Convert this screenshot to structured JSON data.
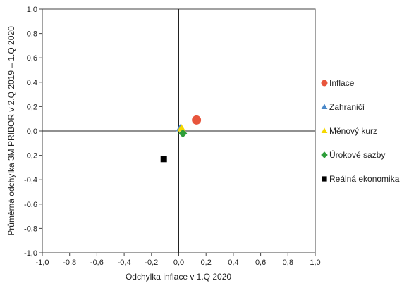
{
  "chart_data": {
    "type": "scatter",
    "xlabel": "Odchylka inflace v 1.Q 2020",
    "ylabel": "Průměrná odchylka 3M PRIBOR v 2.Q 2019 – 1.Q 2020",
    "xlim": [
      -1.0,
      1.0
    ],
    "ylim": [
      -1.0,
      1.0
    ],
    "x_ticks": [
      "-1,0",
      "-0,8",
      "-0,6",
      "-0,4",
      "-0,2",
      "0,0",
      "0,2",
      "0,4",
      "0,6",
      "0,8",
      "1,0"
    ],
    "y_ticks": [
      "1,0",
      "0,8",
      "0,6",
      "0,4",
      "0,2",
      "0,0",
      "-0,2",
      "-0,4",
      "-0,6",
      "-0,8",
      "-1,0"
    ],
    "grid": false,
    "legend_position": "right",
    "series": [
      {
        "name": "Inflace",
        "x": 0.13,
        "y": 0.09,
        "marker": "circle",
        "color": "#e8553c"
      },
      {
        "name": "Zahraničí",
        "x": 0.01,
        "y": 0.02,
        "marker": "triangle",
        "color": "#4a88c9"
      },
      {
        "name": "Měnový kurz",
        "x": 0.02,
        "y": 0.02,
        "marker": "triangle",
        "color": "#f5d800"
      },
      {
        "name": "Úrokové sazby",
        "x": 0.03,
        "y": -0.02,
        "marker": "diamond",
        "color": "#2e9e3a"
      },
      {
        "name": "Reálná ekonomika",
        "x": -0.11,
        "y": -0.23,
        "marker": "square",
        "color": "#000000"
      }
    ]
  }
}
